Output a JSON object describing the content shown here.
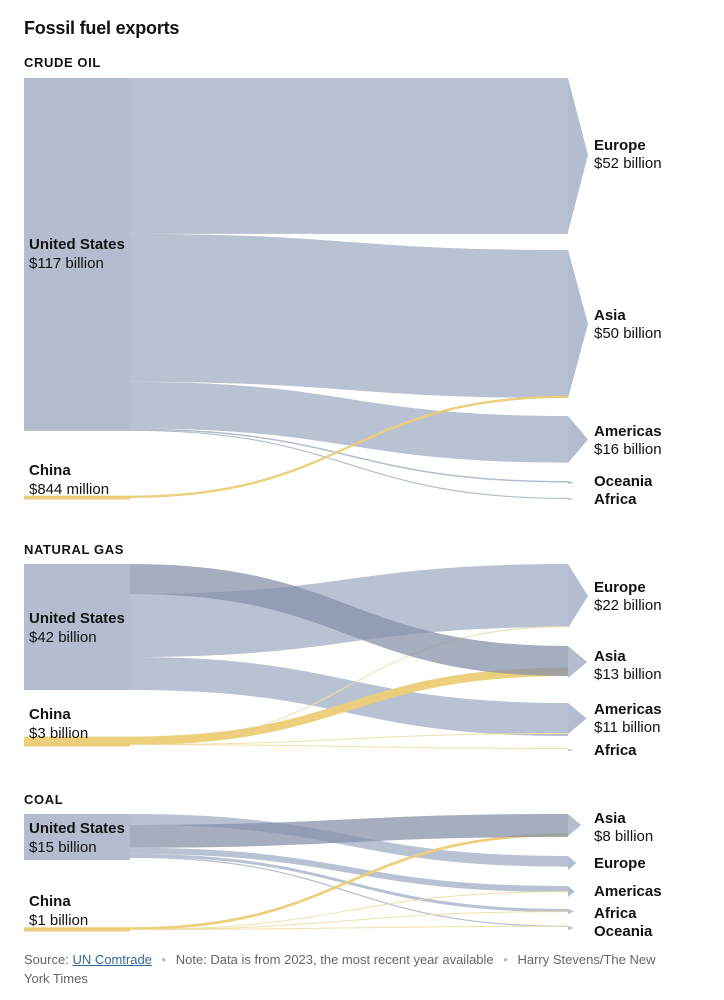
{
  "title": "Fossil fuel exports",
  "colors": {
    "us": "#b3bdcf",
    "us_overlap": "#8792aa",
    "china": "#eccd76",
    "china_thin": "#f1dc9f"
  },
  "chart_data": [
    {
      "type": "sankey",
      "label": "CRUDE OIL",
      "unit": "USD",
      "sources": [
        {
          "id": "us",
          "name": "United States",
          "value_label": "$117 billion",
          "value": 117
        },
        {
          "id": "cn",
          "name": "China",
          "value_label": "$844 million",
          "value": 0.844
        }
      ],
      "targets": [
        {
          "name": "Europe",
          "value_label": "$52 billion",
          "value": 52
        },
        {
          "name": "Asia",
          "value_label": "$50 billion",
          "value": 50
        },
        {
          "name": "Americas",
          "value_label": "$16 billion",
          "value": 16
        },
        {
          "name": "Oceania",
          "value_label": "",
          "value": 0.5
        },
        {
          "name": "Africa",
          "value_label": "",
          "value": 0.2
        }
      ],
      "flows": [
        {
          "source": "United States",
          "target": "Europe",
          "value": 51.8
        },
        {
          "source": "United States",
          "target": "Asia",
          "value": 49.2
        },
        {
          "source": "United States",
          "target": "Americas",
          "value": 15.5
        },
        {
          "source": "United States",
          "target": "Oceania",
          "value": 0.5
        },
        {
          "source": "United States",
          "target": "Africa",
          "value": 0.2
        },
        {
          "source": "China",
          "target": "Asia",
          "value": 0.8
        }
      ]
    },
    {
      "type": "sankey",
      "label": "NATURAL GAS",
      "unit": "USD",
      "sources": [
        {
          "id": "us",
          "name": "United States",
          "value_label": "$42 billion",
          "value": 42
        },
        {
          "id": "cn",
          "name": "China",
          "value_label": "$3 billion",
          "value": 3
        }
      ],
      "targets": [
        {
          "name": "Europe",
          "value_label": "$22 billion",
          "value": 22
        },
        {
          "name": "Asia",
          "value_label": "$13 billion",
          "value": 13
        },
        {
          "name": "Americas",
          "value_label": "$11 billion",
          "value": 11
        },
        {
          "name": "Africa",
          "value_label": "",
          "value": 0.1
        }
      ],
      "flows": [
        {
          "source": "United States",
          "target": "Asia",
          "value": 10
        },
        {
          "source": "United States",
          "target": "Europe",
          "value": 21
        },
        {
          "source": "United States",
          "target": "Americas",
          "value": 11
        },
        {
          "source": "China",
          "target": "Europe",
          "value": 0.1
        },
        {
          "source": "China",
          "target": "Asia",
          "value": 2.8
        },
        {
          "source": "China",
          "target": "Americas",
          "value": 0.1
        },
        {
          "source": "China",
          "target": "Africa",
          "value": 0.05
        }
      ]
    },
    {
      "type": "sankey",
      "label": "COAL",
      "unit": "USD",
      "sources": [
        {
          "id": "us",
          "name": "United States",
          "value_label": "$15 billion",
          "value": 15
        },
        {
          "id": "cn",
          "name": "China",
          "value_label": "$1 billion",
          "value": 1
        }
      ],
      "targets": [
        {
          "name": "Asia",
          "value_label": "$8 billion",
          "value": 8
        },
        {
          "name": "Europe",
          "value_label": "",
          "value": 3.5
        },
        {
          "name": "Americas",
          "value_label": "",
          "value": 2
        },
        {
          "name": "Africa",
          "value_label": "",
          "value": 1
        },
        {
          "name": "Oceania",
          "value_label": "",
          "value": 0.2
        }
      ],
      "flows": [
        {
          "source": "United States",
          "target": "Europe",
          "value": 3.5
        },
        {
          "source": "United States",
          "target": "Asia",
          "value": 7.5
        },
        {
          "source": "United States",
          "target": "Americas",
          "value": 2
        },
        {
          "source": "United States",
          "target": "Africa",
          "value": 1
        },
        {
          "source": "United States",
          "target": "Oceania",
          "value": 0.2
        },
        {
          "source": "China",
          "target": "Asia",
          "value": 0.9
        },
        {
          "source": "China",
          "target": "Americas",
          "value": 0.05
        },
        {
          "source": "China",
          "target": "Africa",
          "value": 0.05
        },
        {
          "source": "China",
          "target": "Oceania",
          "value": 0.05
        }
      ]
    }
  ],
  "footer": {
    "source_prefix": "Source:",
    "source_link": "UN Comtrade",
    "note": "Note: Data is from 2023, the most recent year available",
    "credit": "Harry Stevens/The New York Times"
  }
}
